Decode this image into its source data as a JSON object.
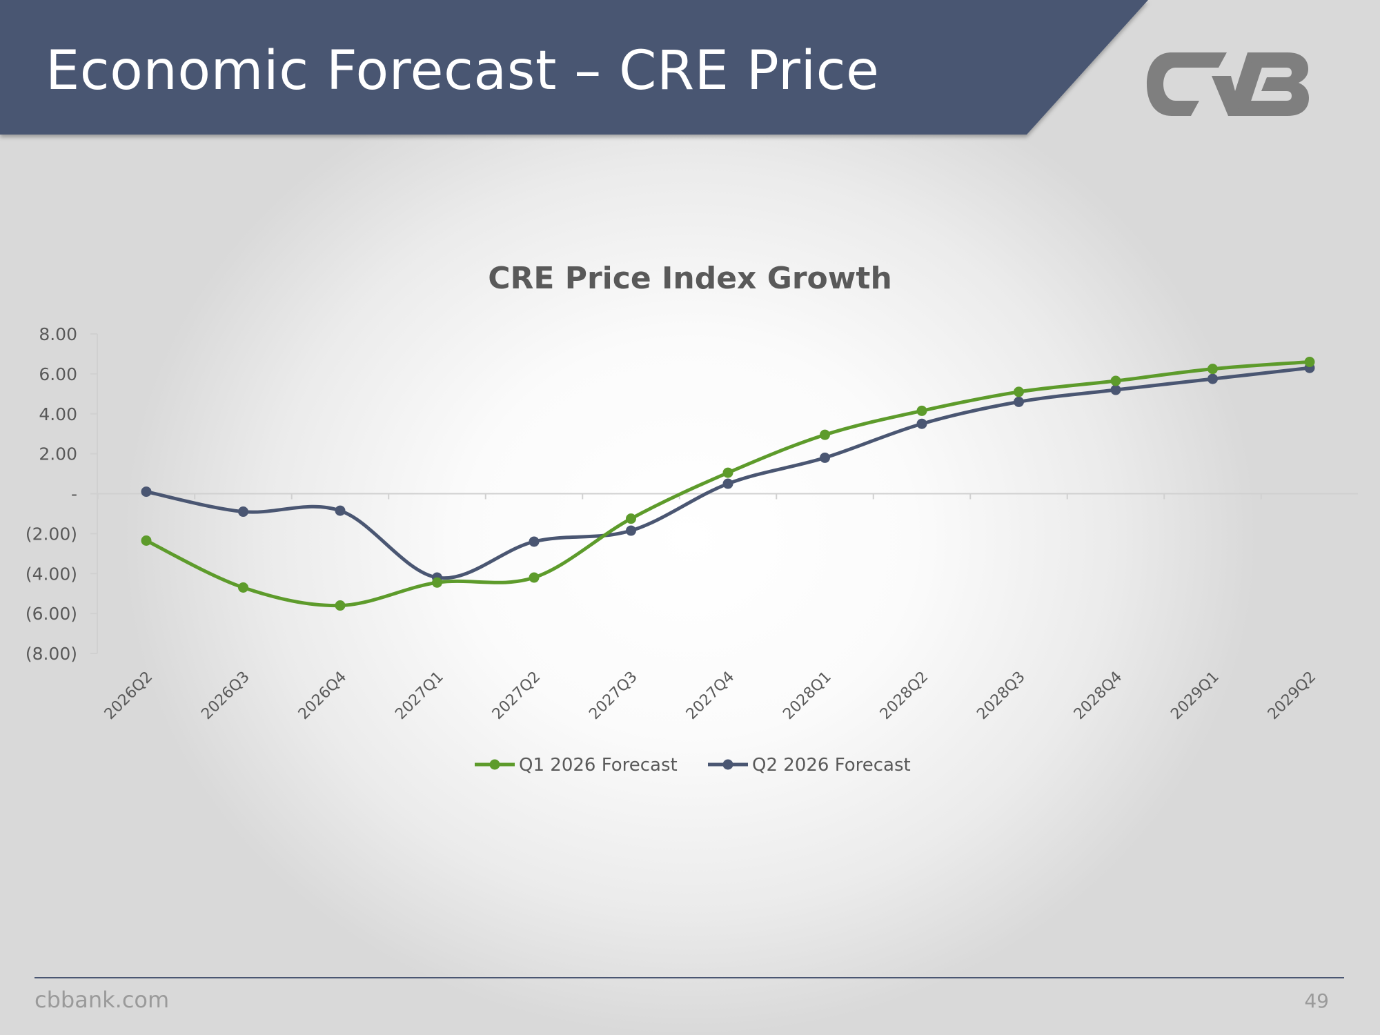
{
  "slide": {
    "title": "Economic Forecast – CRE Price",
    "footer_url": "cbbank.com",
    "page_number": "49",
    "banner_color": "#4a5672",
    "logo_color": "#7f7f7f"
  },
  "chart_data": {
    "type": "line",
    "title": "CRE Price Index Growth",
    "xlabel": "",
    "ylabel": "",
    "categories": [
      "2026Q2",
      "2026Q3",
      "2026Q4",
      "2027Q1",
      "2027Q2",
      "2027Q3",
      "2027Q4",
      "2028Q1",
      "2028Q2",
      "2028Q3",
      "2028Q4",
      "2029Q1",
      "2029Q2"
    ],
    "ylim": [
      -8,
      8
    ],
    "ytick_values": [
      8,
      6,
      4,
      2,
      0,
      -2,
      -4,
      -6,
      -8
    ],
    "ytick_labels": [
      "8.00",
      "6.00",
      "4.00",
      "2.00",
      "-",
      "(2.00)",
      "(4.00)",
      "(6.00)",
      "(8.00)"
    ],
    "series": [
      {
        "name": "Q1 2026 Forecast",
        "color": "#5d9b2b",
        "values": [
          -2.35,
          -4.7,
          -5.6,
          -4.45,
          -4.2,
          -1.25,
          1.05,
          2.95,
          4.15,
          5.1,
          5.65,
          6.25,
          6.6
        ]
      },
      {
        "name": "Q2 2026 Forecast",
        "color": "#4a5672",
        "values": [
          0.1,
          -0.9,
          -0.85,
          -4.2,
          -2.4,
          -1.85,
          0.5,
          1.8,
          3.5,
          4.6,
          5.2,
          5.75,
          6.3
        ]
      }
    ],
    "smooth": true,
    "markers": true,
    "grid": false,
    "legend_position": "bottom"
  }
}
